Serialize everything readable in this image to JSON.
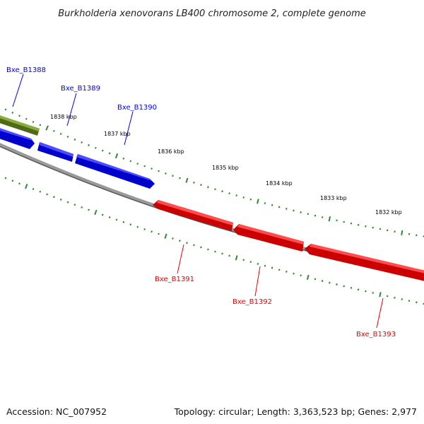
{
  "title": "Burkholderia xenovorans LB400 chromosome 2, complete genome",
  "footer": {
    "accession": "Accession: NC_007952",
    "summary": "Topology: circular; Length: 3,363,523 bp; Genes: 2,977"
  },
  "colors": {
    "forward_strand": "#0000ee",
    "reverse_strand": "#ee0000",
    "other_feature": "#6b8e23",
    "tick_marks": "#2e8b2e",
    "backbone": "#888888"
  },
  "scale": {
    "unit": "kbp",
    "labels": [
      "1838 kbp",
      "1837 kbp",
      "1836 kbp",
      "1835 kbp",
      "1834 kbp",
      "1833 kbp",
      "1832 kbp"
    ]
  },
  "genes": [
    {
      "name": "Bxe_B1388",
      "strand": "forward",
      "color": "#6b8e23"
    },
    {
      "name": "Bxe_B1389",
      "strand": "forward",
      "color": "#0000ee"
    },
    {
      "name": "Bxe_B1390",
      "strand": "forward",
      "color": "#0000ee"
    },
    {
      "name": "Bxe_B1391",
      "strand": "reverse",
      "color": "#ee0000"
    },
    {
      "name": "Bxe_B1392",
      "strand": "reverse",
      "color": "#ee0000"
    },
    {
      "name": "Bxe_B1393",
      "strand": "reverse",
      "color": "#ee0000"
    }
  ]
}
